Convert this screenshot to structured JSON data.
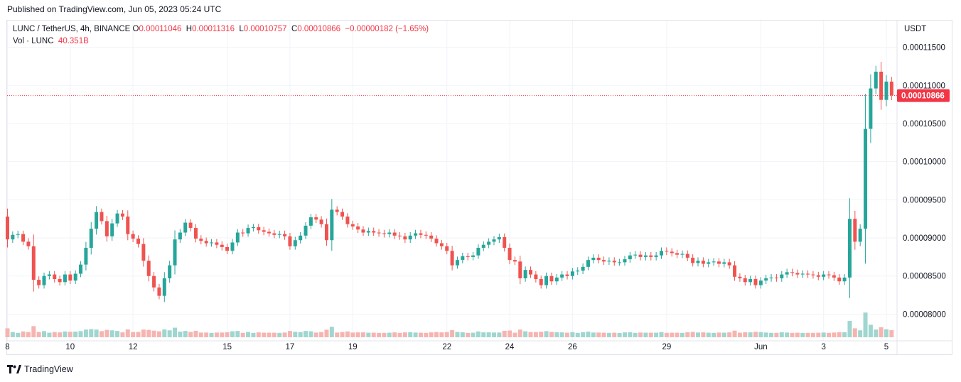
{
  "header": {
    "published": "Published on TradingView.com, Jun 05, 2023 05:24 UTC"
  },
  "legend": {
    "symbol": "LUNC / TetherUS, 4h, BINANCE",
    "o_label": "O",
    "o_value": "0.00011046",
    "h_label": "H",
    "h_value": "0.00011316",
    "l_label": "L",
    "l_value": "0.00010757",
    "c_label": "C",
    "c_value": "0.00010866",
    "change": "−0.00000182 (−1.65%)",
    "vol_label": "Vol · LUNC",
    "vol_value": "40.351B"
  },
  "footer": {
    "brand": "TradingView",
    "logo_icon": "tradingview-logo-icon"
  },
  "colors": {
    "up": "#26a69a",
    "down": "#ef5350",
    "up_vol": "#9fd6cf",
    "down_vol": "#f6b4b1",
    "price_line": "#f23645"
  },
  "chart_data": {
    "type": "candlestick",
    "quote_currency": "USDT",
    "current_price": 0.00010866,
    "current_price_label": "0.00010866",
    "y_ticks": [
      0.000115,
      0.00011,
      0.000105,
      0.0001,
      9.5e-05,
      9e-05,
      8.5e-05,
      8e-05
    ],
    "y_tick_labels": [
      "0.00011500",
      "0.00011000",
      "0.00010500",
      "0.00010000",
      "0.00009500",
      "0.00009000",
      "0.00008500",
      "0.00008000"
    ],
    "y_range": [
      7.65e-05,
      0.0001185
    ],
    "x_ticks": [
      {
        "label": "8",
        "index": 0
      },
      {
        "label": "10",
        "index": 12
      },
      {
        "label": "12",
        "index": 24
      },
      {
        "label": "15",
        "index": 42
      },
      {
        "label": "17",
        "index": 54
      },
      {
        "label": "19",
        "index": 66
      },
      {
        "label": "22",
        "index": 84
      },
      {
        "label": "24",
        "index": 96
      },
      {
        "label": "26",
        "index": 108
      },
      {
        "label": "29",
        "index": 126
      },
      {
        "label": "Jun",
        "index": 144
      },
      {
        "label": "3",
        "index": 156
      },
      {
        "label": "5",
        "index": 168
      }
    ],
    "candle_closes": [
      8.98e-05,
      9.04e-05,
      9.05e-05,
      8.95e-05,
      8.89e-05,
      8.45e-05,
      8.38e-05,
      8.5e-05,
      8.52e-05,
      8.46e-05,
      8.42e-05,
      8.52e-05,
      8.44e-05,
      8.53e-05,
      8.65e-05,
      8.87e-05,
      9.12e-05,
      9.34e-05,
      9.22e-05,
      9.02e-05,
      9.19e-05,
      9.32e-05,
      9.28e-05,
      9.05e-05,
      8.99e-05,
      8.92e-05,
      8.7e-05,
      8.5e-05,
      8.35e-05,
      8.24e-05,
      8.47e-05,
      8.64e-05,
      8.98e-05,
      9.07e-05,
      9.2e-05,
      9.13e-05,
      8.99e-05,
      8.96e-05,
      8.93e-05,
      8.94e-05,
      8.91e-05,
      8.88e-05,
      8.83e-05,
      8.94e-05,
      9.07e-05,
      9.06e-05,
      9.13e-05,
      9.14e-05,
      9.1e-05,
      9.08e-05,
      9.06e-05,
      9.04e-05,
      9.05e-05,
      9.02e-05,
      8.89e-05,
      8.97e-05,
      9.03e-05,
      9.16e-05,
      9.27e-05,
      9.24e-05,
      9.18e-05,
      8.97e-05,
      9.37e-05,
      9.34e-05,
      9.28e-05,
      9.18e-05,
      9.15e-05,
      9.11e-05,
      9.07e-05,
      9.09e-05,
      9.07e-05,
      9.06e-05,
      9.05e-05,
      9.07e-05,
      9.03e-05,
      9.02e-05,
      8.98e-05,
      9.03e-05,
      9.06e-05,
      9.04e-05,
      9.03e-05,
      8.99e-05,
      8.93e-05,
      8.89e-05,
      8.83e-05,
      8.64e-05,
      8.71e-05,
      8.76e-05,
      8.75e-05,
      8.77e-05,
      8.87e-05,
      8.91e-05,
      8.95e-05,
      8.98e-05,
      9.01e-05,
      8.87e-05,
      8.71e-05,
      8.69e-05,
      8.47e-05,
      8.58e-05,
      8.52e-05,
      8.46e-05,
      8.38e-05,
      8.5e-05,
      8.43e-05,
      8.48e-05,
      8.52e-05,
      8.5e-05,
      8.56e-05,
      8.57e-05,
      8.62e-05,
      8.71e-05,
      8.74e-05,
      8.71e-05,
      8.69e-05,
      8.7e-05,
      8.68e-05,
      8.68e-05,
      8.72e-05,
      8.77e-05,
      8.78e-05,
      8.75e-05,
      8.77e-05,
      8.75e-05,
      8.77e-05,
      8.83e-05,
      8.82e-05,
      8.8e-05,
      8.78e-05,
      8.79e-05,
      8.74e-05,
      8.67e-05,
      8.7e-05,
      8.66e-05,
      8.68e-05,
      8.69e-05,
      8.66e-05,
      8.68e-05,
      8.64e-05,
      8.49e-05,
      8.47e-05,
      8.42e-05,
      8.46e-05,
      8.38e-05,
      8.44e-05,
      8.47e-05,
      8.48e-05,
      8.47e-05,
      8.52e-05,
      8.55e-05,
      8.54e-05,
      8.52e-05,
      8.53e-05,
      8.52e-05,
      8.51e-05,
      8.49e-05,
      8.52e-05,
      8.51e-05,
      8.48e-05,
      8.43e-05,
      8.48e-05,
      9.25e-05,
      8.95e-05,
      9.12e-05,
      0.0001043,
      0.0001096,
      0.0001118,
      0.0001081,
      0.0001105,
      0.0001087
    ]
  }
}
